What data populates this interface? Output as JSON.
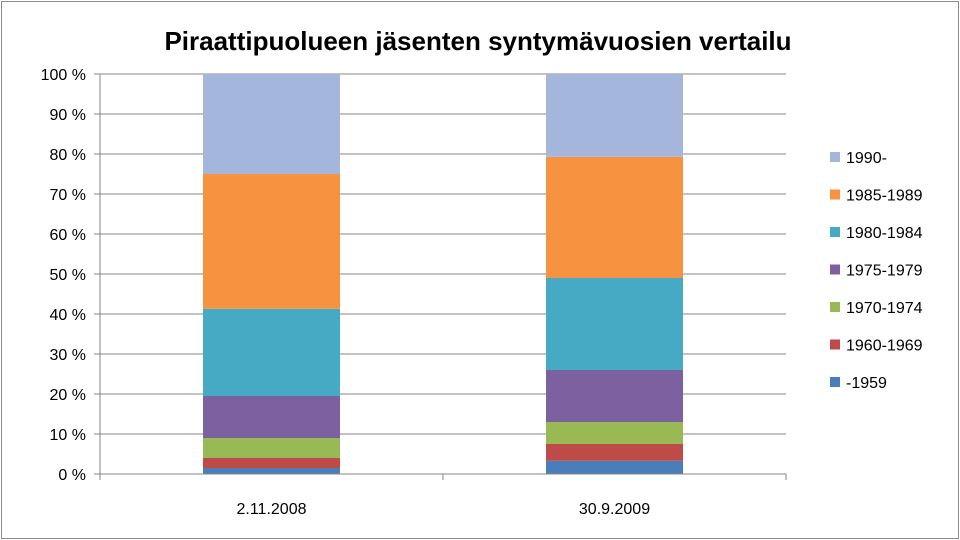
{
  "chart_data": {
    "type": "bar",
    "stacked": true,
    "title": "Piraattipuolueen jäsenten syntymävuosien vertailu",
    "categories": [
      "2.11.2008",
      "30.9.2009"
    ],
    "series": [
      {
        "name": "-1959",
        "color": "#4a7ebb",
        "values": [
          1.5,
          3.3
        ]
      },
      {
        "name": "1960-1969",
        "color": "#be4b48",
        "values": [
          2.5,
          4.2
        ]
      },
      {
        "name": "1970-1974",
        "color": "#98b954",
        "values": [
          5.0,
          5.5
        ]
      },
      {
        "name": "1975-1979",
        "color": "#7d60a0",
        "values": [
          10.5,
          13.0
        ]
      },
      {
        "name": "1980-1984",
        "color": "#46aac5",
        "values": [
          21.8,
          23.0
        ]
      },
      {
        "name": "1985-1989",
        "color": "#f69240",
        "values": [
          33.7,
          30.3
        ]
      },
      {
        "name": "1990-",
        "color": "#a5b6dc",
        "values": [
          25.0,
          20.7
        ]
      }
    ],
    "y_ticks": [
      "0 %",
      "10 %",
      "20 %",
      "30 %",
      "40 %",
      "50 %",
      "60 %",
      "70 %",
      "80 %",
      "90 %",
      "100 %"
    ],
    "ylim": [
      0,
      100
    ],
    "grid": true,
    "legend_position": "right"
  }
}
